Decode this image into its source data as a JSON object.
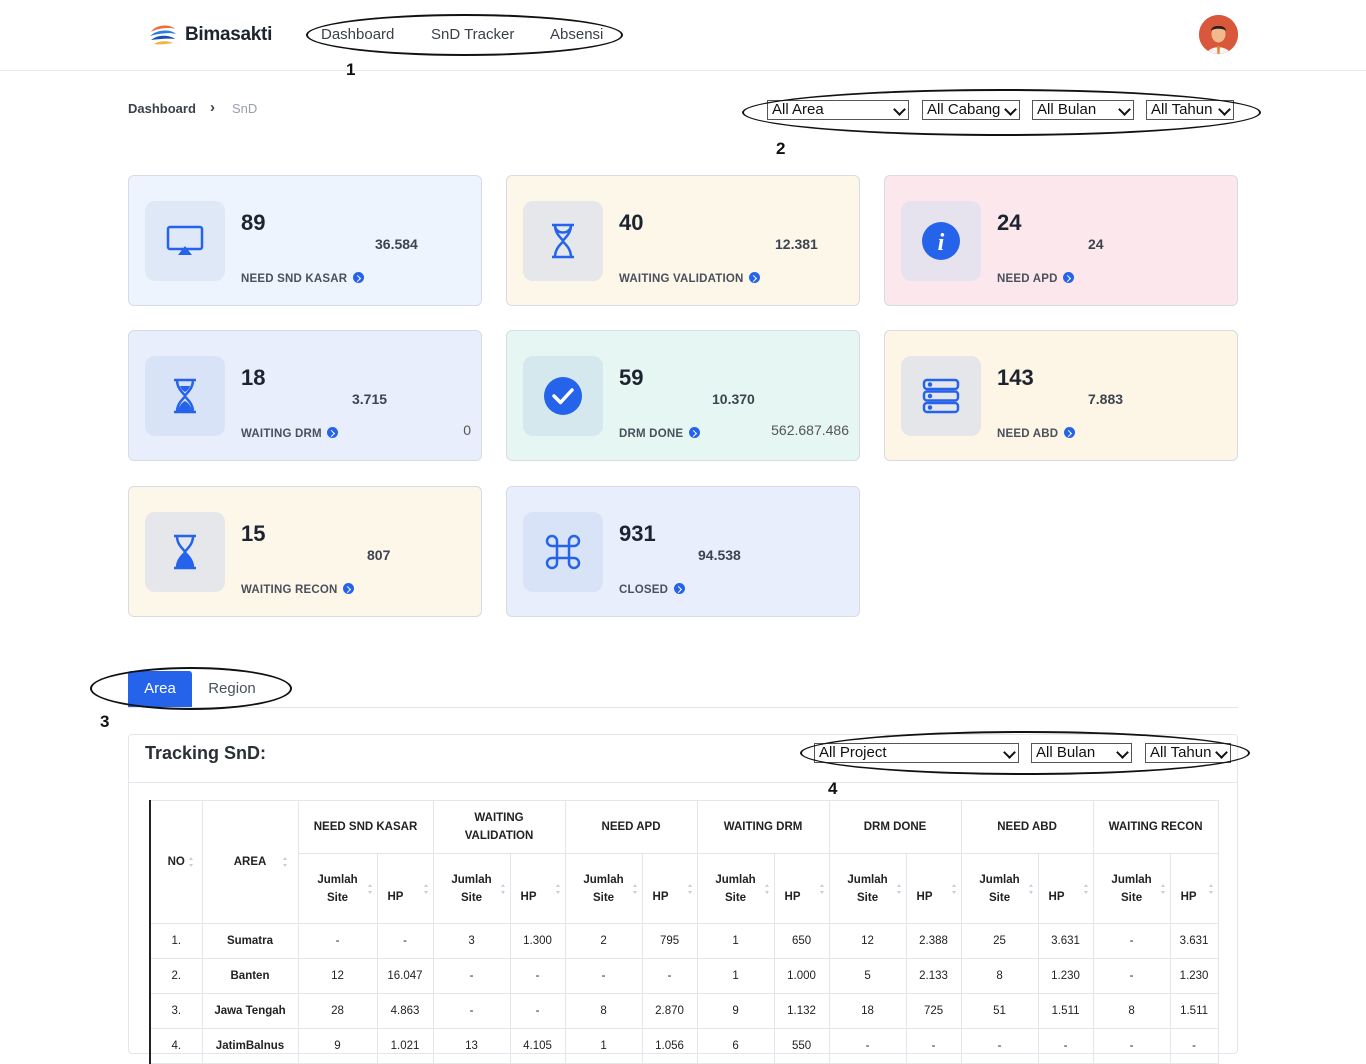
{
  "app": {
    "name": "Bimasakti"
  },
  "nav": {
    "items": [
      "Dashboard",
      "SnD Tracker",
      "Absensi"
    ]
  },
  "markers": [
    "1",
    "2",
    "3",
    "4"
  ],
  "breadcrumb": {
    "home": "Dashboard",
    "separator": "›",
    "current": "SnD"
  },
  "filters_top": {
    "area": "All Area",
    "cabang": "All Cabang",
    "bulan": "All Bulan",
    "tahun": "All Tahun"
  },
  "cards": [
    {
      "count": "89",
      "hp": "36.584",
      "label": "NEED SND KASAR",
      "icon": "airplay-icon",
      "bg": "#eef4fd",
      "iconbg": "#dfe8f7"
    },
    {
      "count": "40",
      "hp": "12.381",
      "label": "WAITING VALIDATION",
      "icon": "hourglass-outline-icon",
      "bg": "#fdf7ea",
      "iconbg": "#e5e7eb"
    },
    {
      "count": "24",
      "hp": "24",
      "label": "NEED APD",
      "icon": "info-icon",
      "bg": "#fce8ec",
      "iconbg": "#e6e2ee"
    },
    {
      "count": "18",
      "hp": "3.715",
      "label": "WAITING DRM",
      "extra": "0",
      "icon": "hourglass-half-icon",
      "bg": "#e8eefb",
      "iconbg": "#d9e3f7"
    },
    {
      "count": "59",
      "hp": "10.370",
      "label": "DRM DONE",
      "extra": "562.687.486",
      "icon": "check-circle-icon",
      "bg": "#e6f6f2",
      "iconbg": "#d5e8ee"
    },
    {
      "count": "143",
      "hp": "7.883",
      "label": "NEED ABD",
      "icon": "server-icon",
      "bg": "#fdf6e6",
      "iconbg": "#e4e6ea"
    },
    {
      "count": "15",
      "hp": "807",
      "label": "WAITING RECON",
      "icon": "hourglass-end-icon",
      "bg": "#fdf7ea",
      "iconbg": "#e5e7eb"
    },
    {
      "count": "931",
      "hp": "94.538",
      "label": "CLOSED",
      "icon": "command-icon",
      "bg": "#e8eefb",
      "iconbg": "#d9e3f7"
    }
  ],
  "tabs": {
    "area": "Area",
    "region": "Region"
  },
  "tracking": {
    "title": "Tracking SnD:",
    "filters": {
      "project": "All Project",
      "bulan": "All Bulan",
      "tahun": "All Tahun"
    },
    "headers": {
      "no": "NO",
      "area": "AREA",
      "groups": [
        "NEED SND KASAR",
        "WAITING VALIDATION",
        "NEED APD",
        "WAITING DRM",
        "DRM DONE",
        "NEED ABD",
        "WAITING RECON"
      ],
      "jumlah_site": "Jumlah Site",
      "hp": "HP"
    },
    "rows": [
      {
        "no": "1.",
        "area": "Sumatra",
        "v": [
          "-",
          "-",
          "3",
          "1.300",
          "2",
          "795",
          "1",
          "650",
          "12",
          "2.388",
          "25",
          "3.631",
          "-",
          "3.631"
        ]
      },
      {
        "no": "2.",
        "area": "Banten",
        "v": [
          "12",
          "16.047",
          "-",
          "-",
          "-",
          "-",
          "1",
          "1.000",
          "5",
          "2.133",
          "8",
          "1.230",
          "-",
          "1.230"
        ]
      },
      {
        "no": "3.",
        "area": "Jawa Tengah",
        "v": [
          "28",
          "4.863",
          "-",
          "-",
          "8",
          "2.870",
          "9",
          "1.132",
          "18",
          "725",
          "51",
          "1.511",
          "8",
          "1.511"
        ]
      },
      {
        "no": "4.",
        "area": "JatimBalnus",
        "v": [
          "9",
          "1.021",
          "13",
          "4.105",
          "1",
          "1.056",
          "6",
          "550",
          "-",
          "-",
          "-",
          "-",
          "-",
          "-"
        ]
      }
    ]
  },
  "colors": {
    "primary": "#2563eb",
    "annotation": "#111111"
  }
}
